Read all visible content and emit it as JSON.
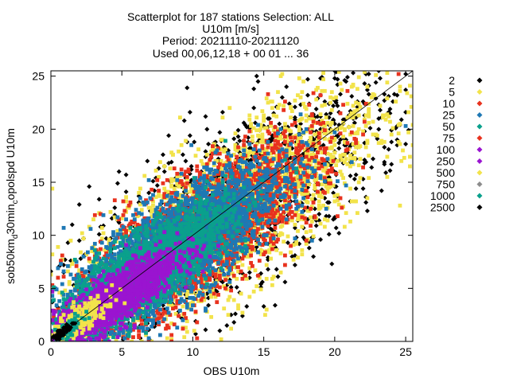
{
  "chart_data": {
    "type": "scatter",
    "title_lines": [
      "Scatterplot for  187 stations Selection: ALL",
      "U10m [m/s]",
      "Period: 20211110-20211120",
      "Used 00,06,12,18 + 00 01 ... 36"
    ],
    "xlabel": "OBS U10m",
    "ylabel": "sob50km_d30min_c opolspd U10m",
    "ylabel_parts": {
      "a": "sob50km",
      "a_sub": "d",
      "b": "30min",
      "b_sub": "c",
      "c": "opolspd U10m"
    },
    "xlim": [
      0,
      25.5
    ],
    "ylim": [
      0,
      25.5
    ],
    "x_ticks": [
      0,
      5,
      10,
      15,
      20,
      25
    ],
    "y_ticks": [
      0,
      5,
      10,
      15,
      20,
      25
    ],
    "diagonal_reference": true,
    "grid": false,
    "legend_position": "right",
    "legend": [
      {
        "label": "2",
        "color": "#000000"
      },
      {
        "label": "5",
        "color": "#f2e34b"
      },
      {
        "label": "10",
        "color": "#e8321e"
      },
      {
        "label": "25",
        "color": "#1e78b4"
      },
      {
        "label": "50",
        "color": "#0aa08c"
      },
      {
        "label": "75",
        "color": "#e8321e"
      },
      {
        "label": "100",
        "color": "#9a14d0"
      },
      {
        "label": "250",
        "color": "#9a14d0"
      },
      {
        "label": "500",
        "color": "#f2e34b"
      },
      {
        "label": "750",
        "color": "#8c8c8c"
      },
      {
        "label": "1000",
        "color": "#0aa08c"
      },
      {
        "label": "2500",
        "color": "#000000"
      }
    ],
    "density_regions": [
      {
        "level": "2",
        "color": "#000000",
        "x_center": 12.5,
        "y_center": 12.0,
        "x_spread": 12.0,
        "y_spread": 12.5
      },
      {
        "level": "5",
        "color": "#f2e34b",
        "x_center": 11.5,
        "y_center": 11.0,
        "x_spread": 10.5,
        "y_spread": 10.5
      },
      {
        "level": "10",
        "color": "#e8321e",
        "x_center": 10.0,
        "y_center": 9.5,
        "x_spread": 8.0,
        "y_spread": 8.0
      },
      {
        "level": "25",
        "color": "#1e78b4",
        "x_center": 8.5,
        "y_center": 8.5,
        "x_spread": 7.0,
        "y_spread": 7.0
      },
      {
        "level": "50",
        "color": "#0aa08c",
        "x_center": 6.5,
        "y_center": 6.5,
        "x_spread": 5.5,
        "y_spread": 5.0
      },
      {
        "level": "100",
        "color": "#9a14d0",
        "x_center": 4.5,
        "y_center": 4.0,
        "x_spread": 4.0,
        "y_spread": 3.5
      },
      {
        "level": "500",
        "color": "#f2e34b",
        "x_center": 2.0,
        "y_center": 2.0,
        "x_spread": 1.8,
        "y_spread": 1.8
      },
      {
        "level": "1000",
        "color": "#0aa08c",
        "x_center": 1.2,
        "y_center": 1.2,
        "x_spread": 1.0,
        "y_spread": 1.0
      },
      {
        "level": "2500",
        "color": "#000000",
        "x_center": 0.8,
        "y_center": 0.8,
        "x_spread": 0.7,
        "y_spread": 0.7
      }
    ]
  }
}
